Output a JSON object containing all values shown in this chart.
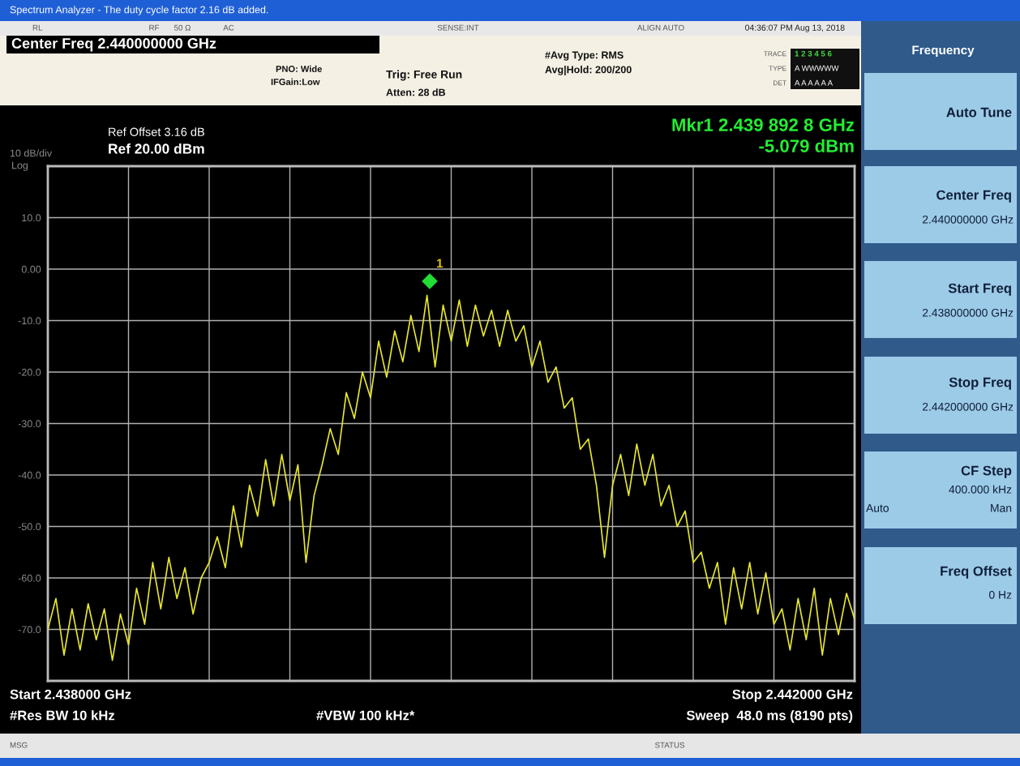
{
  "chart_data": {
    "type": "line",
    "title": "Spectrum Analyzer - The duty cycle factor 2.16 dB added.",
    "categories": [
      null,
      null,
      null,
      null,
      null,
      null,
      null,
      null,
      null,
      null,
      null,
      null,
      null,
      null,
      null,
      null,
      null,
      null,
      null,
      null,
      null,
      null,
      null,
      null,
      null,
      null,
      null,
      null,
      null,
      null,
      null,
      null,
      null,
      null,
      null,
      null,
      null,
      null,
      null,
      null,
      null,
      null,
      null,
      null,
      null,
      null,
      null,
      null,
      null,
      null,
      null,
      null,
      null,
      null,
      null,
      null,
      null,
      null,
      null,
      null,
      null,
      null,
      null,
      null,
      null,
      null,
      null,
      null,
      null,
      null,
      null,
      null,
      null,
      null,
      null,
      null,
      null,
      null,
      null,
      null,
      null,
      null,
      null,
      null,
      null,
      null,
      null,
      null,
      null,
      null,
      null,
      null,
      null,
      null,
      null,
      null,
      null,
      null,
      null,
      null,
      null
    ],
    "series": [
      {
        "color": "#e6e62e",
        "values": [
          -70,
          -64,
          -75,
          -66,
          -74,
          -65,
          -72,
          -66,
          -76,
          -67,
          -73,
          -62,
          -69,
          -57,
          -66,
          -56,
          -64,
          -58,
          -67,
          -60,
          -57,
          -52,
          -58,
          -46,
          -54,
          -42,
          -48,
          -37,
          -46,
          -36,
          -45,
          -38,
          -57,
          -44,
          -38,
          -31,
          -36,
          -24,
          -29,
          -20,
          -25,
          -14,
          -21,
          -12,
          -18,
          -9,
          -16,
          -5.1,
          -19,
          -7,
          -14,
          -6,
          -15,
          -7,
          -13,
          -8,
          -15,
          -8,
          -14,
          -11,
          -19,
          -14,
          -22,
          -19,
          -27,
          -25,
          -35,
          -33,
          -42,
          -56,
          -42,
          -36,
          -44,
          -34,
          -42,
          -36,
          -46,
          -42,
          -50,
          -47,
          -57,
          -55,
          -62,
          -57,
          -69,
          -58,
          -66,
          -57,
          -67,
          -59,
          -69,
          -66,
          -74,
          -64,
          -72,
          -62,
          -75,
          -64,
          -71,
          -63,
          -68
        ]
      }
    ],
    "ylim": [
      -80,
      20
    ],
    "yticks": [
      {
        "value": 10,
        "label": "10.0"
      },
      {
        "value": 0,
        "label": "0.00"
      },
      {
        "value": -10,
        "label": "-10.0"
      },
      {
        "value": -20,
        "label": "-20.0"
      },
      {
        "value": -30,
        "label": "-30.0"
      },
      {
        "value": -40,
        "label": "-40.0"
      },
      {
        "value": -50,
        "label": "-50.0"
      },
      {
        "value": -60,
        "label": "-60.0"
      },
      {
        "value": -70,
        "label": "-70.0"
      }
    ],
    "grid": true,
    "annotations": [
      "RL",
      "RF",
      "50 Ω",
      "AC",
      "SENSE:INT",
      "ALIGN AUTO",
      "04:36:07 PM Aug 13, 2018",
      "Center Freq 2.440000000 GHz",
      "PNO: Wide",
      "IFGain:Low",
      "Trig: Free Run",
      "Atten: 28 dB",
      "#Avg Type: RMS",
      "Avg|Hold: 200/200",
      "TRACE",
      "1 2 3 4 5 6",
      "TYPE",
      "A WWWWW",
      "DET",
      "A A A A A A",
      "Ref Offset 3.16 dB",
      "Ref 20.00 dBm",
      "10 dB/div",
      "Log",
      "Mkr1 2.439 892 8 GHz",
      "-5.079 dBm",
      "1",
      "Start 2.438000 GHz",
      "#Res BW 10 kHz",
      "#VBW 100 kHz*",
      "Stop 2.442000 GHz",
      "Sweep  48.0 ms (8190 pts)",
      "Frequency",
      "Auto Tune",
      "Center Freq",
      "2.440000000 GHz",
      "Start Freq",
      "2.438000000 GHz",
      "Stop Freq",
      "2.442000000 GHz",
      "CF Step",
      "400.000 kHz",
      "Auto",
      "Man",
      "Freq Offset",
      "0 Hz",
      "MSG",
      "STATUS"
    ]
  }
}
